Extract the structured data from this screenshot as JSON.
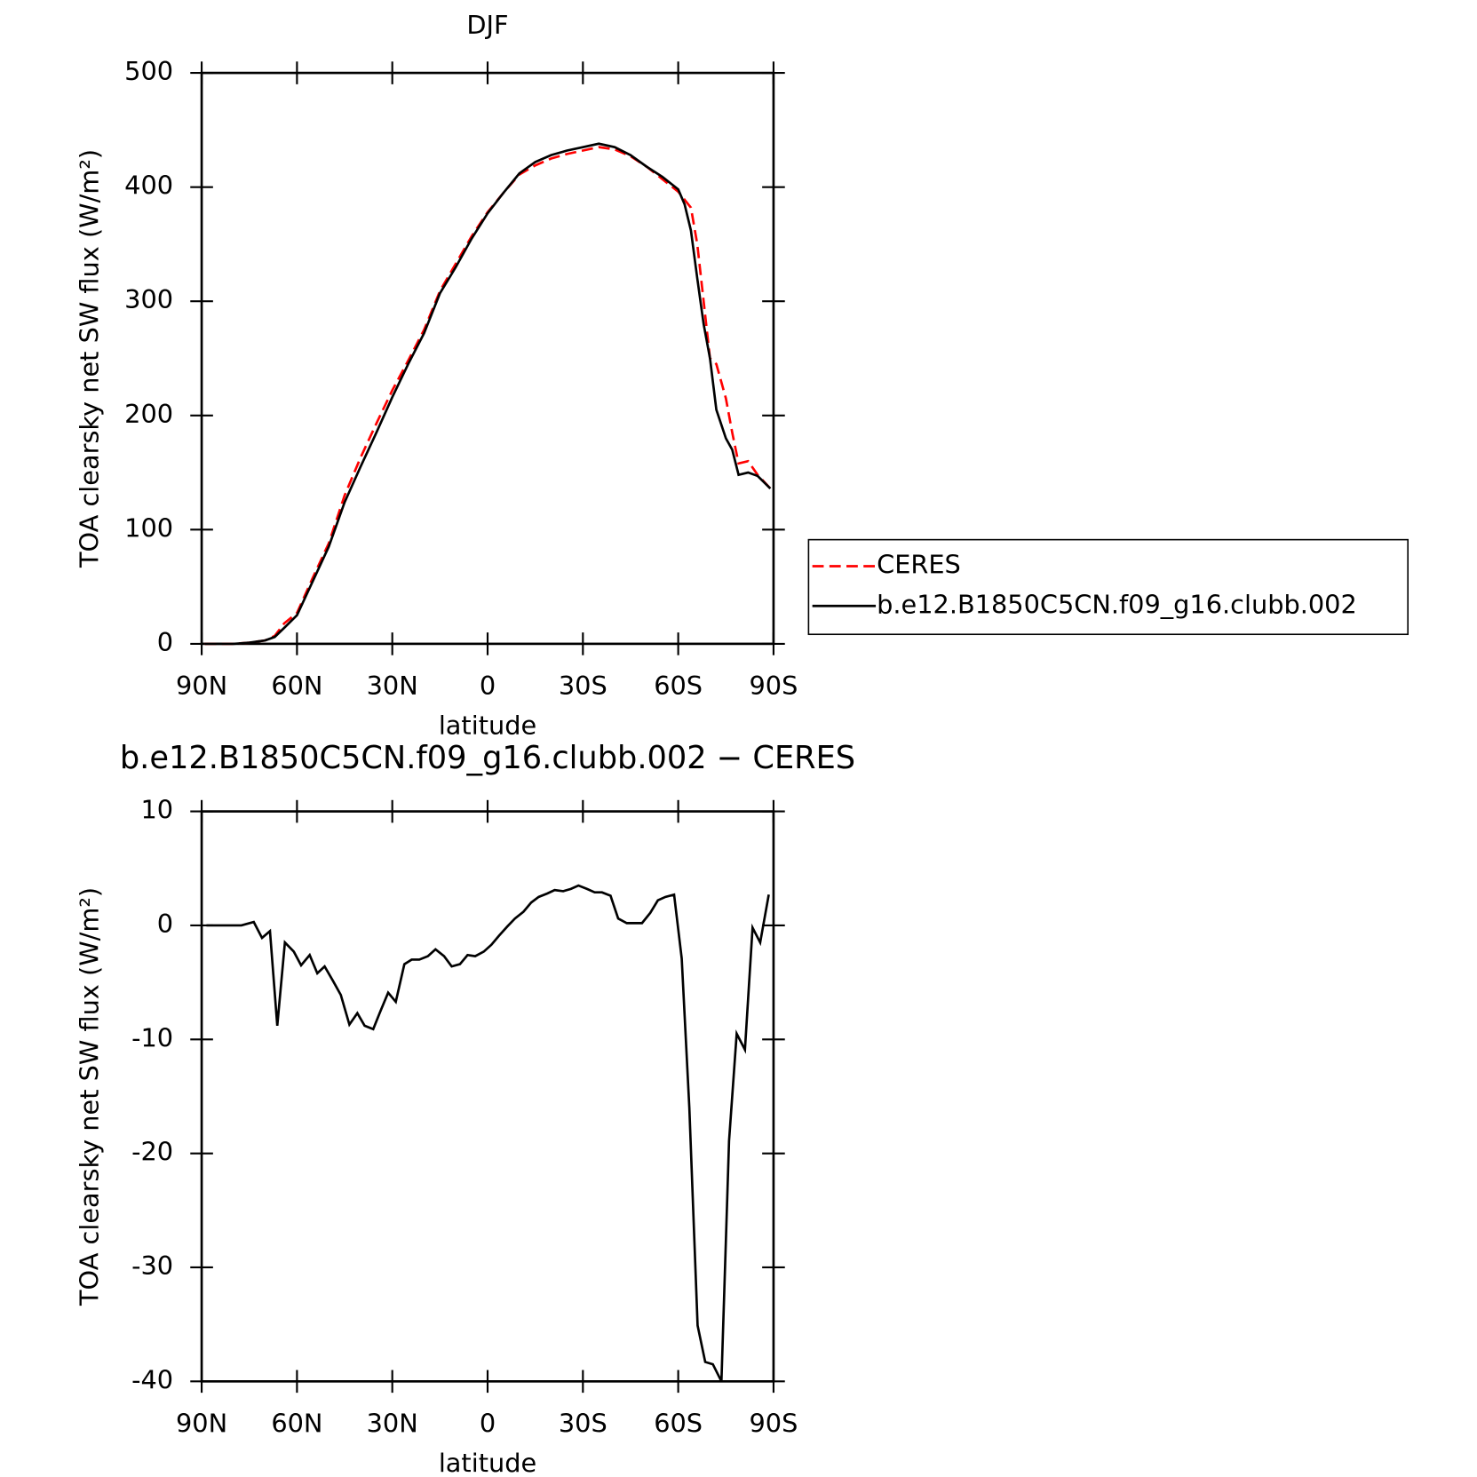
{
  "chart_data": [
    {
      "type": "line",
      "title": "DJF",
      "xlabel": "latitude",
      "ylabel": "TOA clearsky net SW flux (W/m²)",
      "x": [
        -89,
        -80,
        -75,
        -70,
        -67,
        -64,
        -60,
        -55,
        -50,
        -45,
        -40,
        -35,
        -30,
        -25,
        -20,
        -15,
        -10,
        -5,
        0,
        5,
        10,
        15,
        20,
        25,
        30,
        35,
        40,
        45,
        50,
        55,
        60,
        62,
        64,
        66,
        68,
        70,
        72,
        75,
        77,
        79,
        82,
        85,
        89
      ],
      "series": [
        {
          "name": "CERES",
          "color": "#ff0000",
          "dashed": true,
          "values": [
            0,
            0,
            1,
            3,
            7,
            18,
            27,
            58,
            88,
            130,
            163,
            193,
            222,
            248,
            275,
            309,
            333,
            357,
            378,
            395,
            411,
            419,
            425,
            429,
            432,
            435,
            433,
            427,
            418,
            407,
            396,
            389,
            382,
            350,
            300,
            250,
            245,
            215,
            185,
            158,
            160,
            148,
            136
          ]
        },
        {
          "name": "b.e12.B1850C5CN.f09_g16.clubb.002",
          "color": "#000000",
          "dashed": false,
          "values": [
            0,
            0,
            1,
            3,
            6,
            14,
            25,
            55,
            85,
            124,
            155,
            185,
            216,
            245,
            272,
            307,
            330,
            355,
            377,
            395,
            412,
            422,
            428,
            432,
            435,
            438,
            435,
            428,
            418,
            409,
            398,
            385,
            362,
            320,
            280,
            250,
            205,
            180,
            170,
            148,
            150,
            147,
            136
          ]
        }
      ],
      "xlim": [
        -90,
        90
      ],
      "xticks": [
        {
          "value": -90,
          "label": "90N"
        },
        {
          "value": -60,
          "label": "60N"
        },
        {
          "value": -30,
          "label": "30N"
        },
        0,
        {
          "value": 30,
          "label": "30S"
        },
        {
          "value": 60,
          "label": "60S"
        },
        {
          "value": 90,
          "label": "90S"
        }
      ],
      "ylim": [
        0,
        500
      ],
      "yticks": [
        0,
        100,
        200,
        300,
        400,
        500
      ],
      "grid": false
    },
    {
      "type": "line",
      "title": "b.e12.B1850C5CN.f09_g16.clubb.002 − CERES",
      "xlabel": "latitude",
      "ylabel": "TOA clearsky net SW flux (W/m²)",
      "x": [
        -88.5,
        -77.5,
        -73.6,
        -71,
        -68.5,
        -66.2,
        -63.8,
        -61,
        -58.7,
        -56,
        -53.6,
        -51.3,
        -48.6,
        -46.2,
        -43.5,
        -41,
        -38.7,
        -36,
        -33.7,
        -31.3,
        -28.9,
        -26.2,
        -23.9,
        -21.5,
        -18.8,
        -16.4,
        -13.7,
        -11.3,
        -8.7,
        -6.3,
        -3.9,
        -1.2,
        1.2,
        3.6,
        6.2,
        8.6,
        11.3,
        13.7,
        16.1,
        18.8,
        21.1,
        23.8,
        26.2,
        28.6,
        31.3,
        33.7,
        36,
        38.7,
        41.1,
        43.8,
        46.2,
        48.6,
        51.2,
        53.6,
        56,
        58.7,
        61.1,
        63.5,
        66.1,
        68.5,
        70.9,
        73.6,
        76,
        78.4,
        81,
        83.4,
        85.8,
        88.5
      ],
      "color": "#000000",
      "values": [
        0,
        0,
        0.3,
        -1.1,
        -0.5,
        -8.8,
        -1.5,
        -2.3,
        -3.5,
        -2.6,
        -4.2,
        -3.6,
        -4.9,
        -6.1,
        -8.7,
        -7.7,
        -8.8,
        -9.1,
        -7.5,
        -5.9,
        -6.7,
        -3.4,
        -3,
        -3,
        -2.7,
        -2.1,
        -2.7,
        -3.6,
        -3.4,
        -2.6,
        -2.7,
        -2.3,
        -1.7,
        -0.9,
        -0.1,
        0.6,
        1.2,
        2.0,
        2.5,
        2.8,
        3.1,
        3.0,
        3.2,
        3.5,
        3.2,
        2.9,
        2.9,
        2.6,
        0.6,
        0.2,
        0.2,
        0.2,
        1.1,
        2.2,
        2.5,
        2.7,
        -2.9,
        -16,
        -35.1,
        -38.3,
        -38.5,
        -40,
        -18.9,
        -9.5,
        -10.9,
        -0.2,
        -1.5,
        2.7
      ],
      "xlim": [
        -90,
        90
      ],
      "xticks": [
        {
          "value": -90,
          "label": "90N"
        },
        {
          "value": -60,
          "label": "60N"
        },
        {
          "value": -30,
          "label": "30N"
        },
        0,
        {
          "value": 30,
          "label": "30S"
        },
        {
          "value": 60,
          "label": "60S"
        },
        {
          "value": 90,
          "label": "90S"
        }
      ],
      "ylim": [
        -40,
        10
      ],
      "yticks": [
        -40,
        -30,
        -20,
        -10,
        0,
        10
      ],
      "grid": false
    }
  ]
}
